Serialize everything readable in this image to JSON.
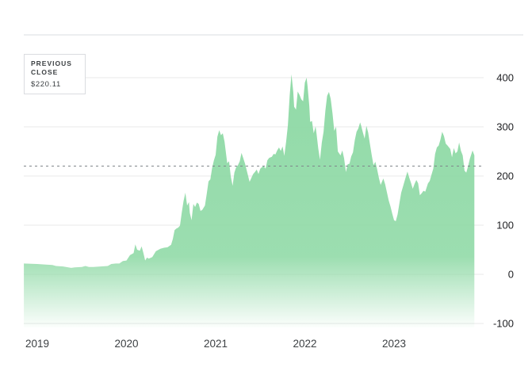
{
  "chart": {
    "previous_close_chip": {
      "label": "PREVIOUS CLOSE",
      "value": "$220.11"
    },
    "colors": {
      "area_green": "#8ed9a5",
      "area_green_fade": "#ffffff",
      "gridline": "#e8e8e8",
      "top_rule": "#dadce0",
      "dashed_line": "#80868b",
      "y_axis_text": "#202124",
      "x_axis_text": "#3c4043",
      "background": "#ffffff"
    }
  },
  "chart_data": {
    "type": "area",
    "title": "",
    "xlabel": "",
    "ylabel": "",
    "legend": "none",
    "grid": true,
    "x_axis": {
      "tick_years": [
        2019,
        2020,
        2021,
        2022,
        2023
      ],
      "tick_labels": [
        "2019",
        "2020",
        "2021",
        "2022",
        "2023"
      ],
      "range": [
        2018.85,
        2023.95
      ]
    },
    "y_axis": {
      "ticks": [
        400,
        300,
        200,
        100,
        0,
        -100
      ],
      "tick_labels": [
        "400",
        "300",
        "200",
        "100",
        "0",
        "-100"
      ],
      "range": [
        -108,
        430
      ],
      "side": "right"
    },
    "previous_close_value": 220.11,
    "series": [
      {
        "name": "price",
        "points": [
          [
            2018.85,
            22
          ],
          [
            2019.0,
            21
          ],
          [
            2019.08,
            20
          ],
          [
            2019.17,
            19
          ],
          [
            2019.21,
            17
          ],
          [
            2019.29,
            16
          ],
          [
            2019.38,
            13
          ],
          [
            2019.42,
            14
          ],
          [
            2019.5,
            15
          ],
          [
            2019.54,
            17
          ],
          [
            2019.58,
            15
          ],
          [
            2019.63,
            15
          ],
          [
            2019.71,
            16
          ],
          [
            2019.79,
            17
          ],
          [
            2019.83,
            21
          ],
          [
            2019.88,
            22
          ],
          [
            2019.92,
            22
          ],
          [
            2019.96,
            27
          ],
          [
            2020.0,
            28
          ],
          [
            2020.04,
            39
          ],
          [
            2020.08,
            43
          ],
          [
            2020.1,
            61
          ],
          [
            2020.12,
            50
          ],
          [
            2020.15,
            48
          ],
          [
            2020.17,
            57
          ],
          [
            2020.19,
            43
          ],
          [
            2020.21,
            28
          ],
          [
            2020.23,
            34
          ],
          [
            2020.25,
            32
          ],
          [
            2020.29,
            35
          ],
          [
            2020.33,
            47
          ],
          [
            2020.38,
            52
          ],
          [
            2020.42,
            54
          ],
          [
            2020.46,
            55
          ],
          [
            2020.5,
            60
          ],
          [
            2020.52,
            72
          ],
          [
            2020.54,
            90
          ],
          [
            2020.56,
            93
          ],
          [
            2020.58,
            95
          ],
          [
            2020.6,
            99
          ],
          [
            2020.62,
            125
          ],
          [
            2020.64,
            149
          ],
          [
            2020.66,
            166
          ],
          [
            2020.68,
            140
          ],
          [
            2020.7,
            147
          ],
          [
            2020.71,
            125
          ],
          [
            2020.73,
            110
          ],
          [
            2020.75,
            143
          ],
          [
            2020.77,
            137
          ],
          [
            2020.79,
            146
          ],
          [
            2020.81,
            143
          ],
          [
            2020.83,
            129
          ],
          [
            2020.85,
            131
          ],
          [
            2020.88,
            140
          ],
          [
            2020.9,
            164
          ],
          [
            2020.92,
            189
          ],
          [
            2020.94,
            193
          ],
          [
            2020.96,
            216
          ],
          [
            2020.98,
            232
          ],
          [
            2021.0,
            243
          ],
          [
            2021.02,
            280
          ],
          [
            2021.04,
            293
          ],
          [
            2021.06,
            283
          ],
          [
            2021.08,
            287
          ],
          [
            2021.1,
            270
          ],
          [
            2021.13,
            226
          ],
          [
            2021.15,
            230
          ],
          [
            2021.17,
            199
          ],
          [
            2021.19,
            180
          ],
          [
            2021.21,
            207
          ],
          [
            2021.23,
            218
          ],
          [
            2021.25,
            222
          ],
          [
            2021.27,
            230
          ],
          [
            2021.29,
            247
          ],
          [
            2021.31,
            236
          ],
          [
            2021.33,
            225
          ],
          [
            2021.35,
            210
          ],
          [
            2021.38,
            188
          ],
          [
            2021.4,
            196
          ],
          [
            2021.42,
            204
          ],
          [
            2021.44,
            208
          ],
          [
            2021.46,
            213
          ],
          [
            2021.48,
            204
          ],
          [
            2021.5,
            215
          ],
          [
            2021.52,
            218
          ],
          [
            2021.54,
            220
          ],
          [
            2021.56,
            215
          ],
          [
            2021.58,
            232
          ],
          [
            2021.6,
            237
          ],
          [
            2021.63,
            239
          ],
          [
            2021.65,
            245
          ],
          [
            2021.67,
            244
          ],
          [
            2021.69,
            252
          ],
          [
            2021.71,
            258
          ],
          [
            2021.73,
            251
          ],
          [
            2021.75,
            260
          ],
          [
            2021.77,
            241
          ],
          [
            2021.79,
            270
          ],
          [
            2021.81,
            303
          ],
          [
            2021.83,
            364
          ],
          [
            2021.85,
            407
          ],
          [
            2021.86,
            390
          ],
          [
            2021.87,
            371
          ],
          [
            2021.88,
            341
          ],
          [
            2021.9,
            335
          ],
          [
            2021.92,
            372
          ],
          [
            2021.94,
            365
          ],
          [
            2021.96,
            356
          ],
          [
            2021.98,
            352
          ],
          [
            2022.0,
            390
          ],
          [
            2022.02,
            400
          ],
          [
            2022.03,
            383
          ],
          [
            2022.05,
            343
          ],
          [
            2022.06,
            310
          ],
          [
            2022.08,
            312
          ],
          [
            2022.1,
            287
          ],
          [
            2022.12,
            301
          ],
          [
            2022.13,
            288
          ],
          [
            2022.15,
            256
          ],
          [
            2022.17,
            233
          ],
          [
            2022.19,
            268
          ],
          [
            2022.21,
            290
          ],
          [
            2022.23,
            333
          ],
          [
            2022.25,
            363
          ],
          [
            2022.27,
            371
          ],
          [
            2022.29,
            357
          ],
          [
            2022.31,
            327
          ],
          [
            2022.33,
            292
          ],
          [
            2022.35,
            300
          ],
          [
            2022.37,
            250
          ],
          [
            2022.4,
            242
          ],
          [
            2022.42,
            252
          ],
          [
            2022.44,
            236
          ],
          [
            2022.46,
            208
          ],
          [
            2022.48,
            224
          ],
          [
            2022.5,
            225
          ],
          [
            2022.52,
            240
          ],
          [
            2022.54,
            248
          ],
          [
            2022.56,
            273
          ],
          [
            2022.58,
            290
          ],
          [
            2022.6,
            297
          ],
          [
            2022.62,
            309
          ],
          [
            2022.63,
            303
          ],
          [
            2022.65,
            289
          ],
          [
            2022.67,
            276
          ],
          [
            2022.69,
            302
          ],
          [
            2022.71,
            288
          ],
          [
            2022.73,
            265
          ],
          [
            2022.75,
            242
          ],
          [
            2022.77,
            222
          ],
          [
            2022.79,
            229
          ],
          [
            2022.81,
            214
          ],
          [
            2022.83,
            196
          ],
          [
            2022.85,
            182
          ],
          [
            2022.88,
            195
          ],
          [
            2022.9,
            183
          ],
          [
            2022.92,
            167
          ],
          [
            2022.94,
            150
          ],
          [
            2022.96,
            138
          ],
          [
            2022.98,
            123
          ],
          [
            2023.0,
            110
          ],
          [
            2023.02,
            108
          ],
          [
            2023.04,
            122
          ],
          [
            2023.06,
            144
          ],
          [
            2023.08,
            166
          ],
          [
            2023.1,
            178
          ],
          [
            2023.13,
            197
          ],
          [
            2023.15,
            209
          ],
          [
            2023.17,
            197
          ],
          [
            2023.19,
            186
          ],
          [
            2023.21,
            174
          ],
          [
            2023.23,
            184
          ],
          [
            2023.25,
            192
          ],
          [
            2023.27,
            185
          ],
          [
            2023.29,
            161
          ],
          [
            2023.31,
            165
          ],
          [
            2023.33,
            170
          ],
          [
            2023.35,
            168
          ],
          [
            2023.38,
            185
          ],
          [
            2023.4,
            190
          ],
          [
            2023.42,
            203
          ],
          [
            2023.44,
            215
          ],
          [
            2023.46,
            245
          ],
          [
            2023.48,
            258
          ],
          [
            2023.5,
            262
          ],
          [
            2023.52,
            274
          ],
          [
            2023.54,
            290
          ],
          [
            2023.56,
            281
          ],
          [
            2023.58,
            266
          ],
          [
            2023.6,
            262
          ],
          [
            2023.63,
            255
          ],
          [
            2023.65,
            238
          ],
          [
            2023.67,
            257
          ],
          [
            2023.69,
            246
          ],
          [
            2023.71,
            250
          ],
          [
            2023.73,
            268
          ],
          [
            2023.75,
            251
          ],
          [
            2023.77,
            242
          ],
          [
            2023.79,
            211
          ],
          [
            2023.81,
            207
          ],
          [
            2023.83,
            220
          ],
          [
            2023.85,
            235
          ],
          [
            2023.88,
            252
          ],
          [
            2023.9,
            242
          ]
        ]
      }
    ]
  }
}
